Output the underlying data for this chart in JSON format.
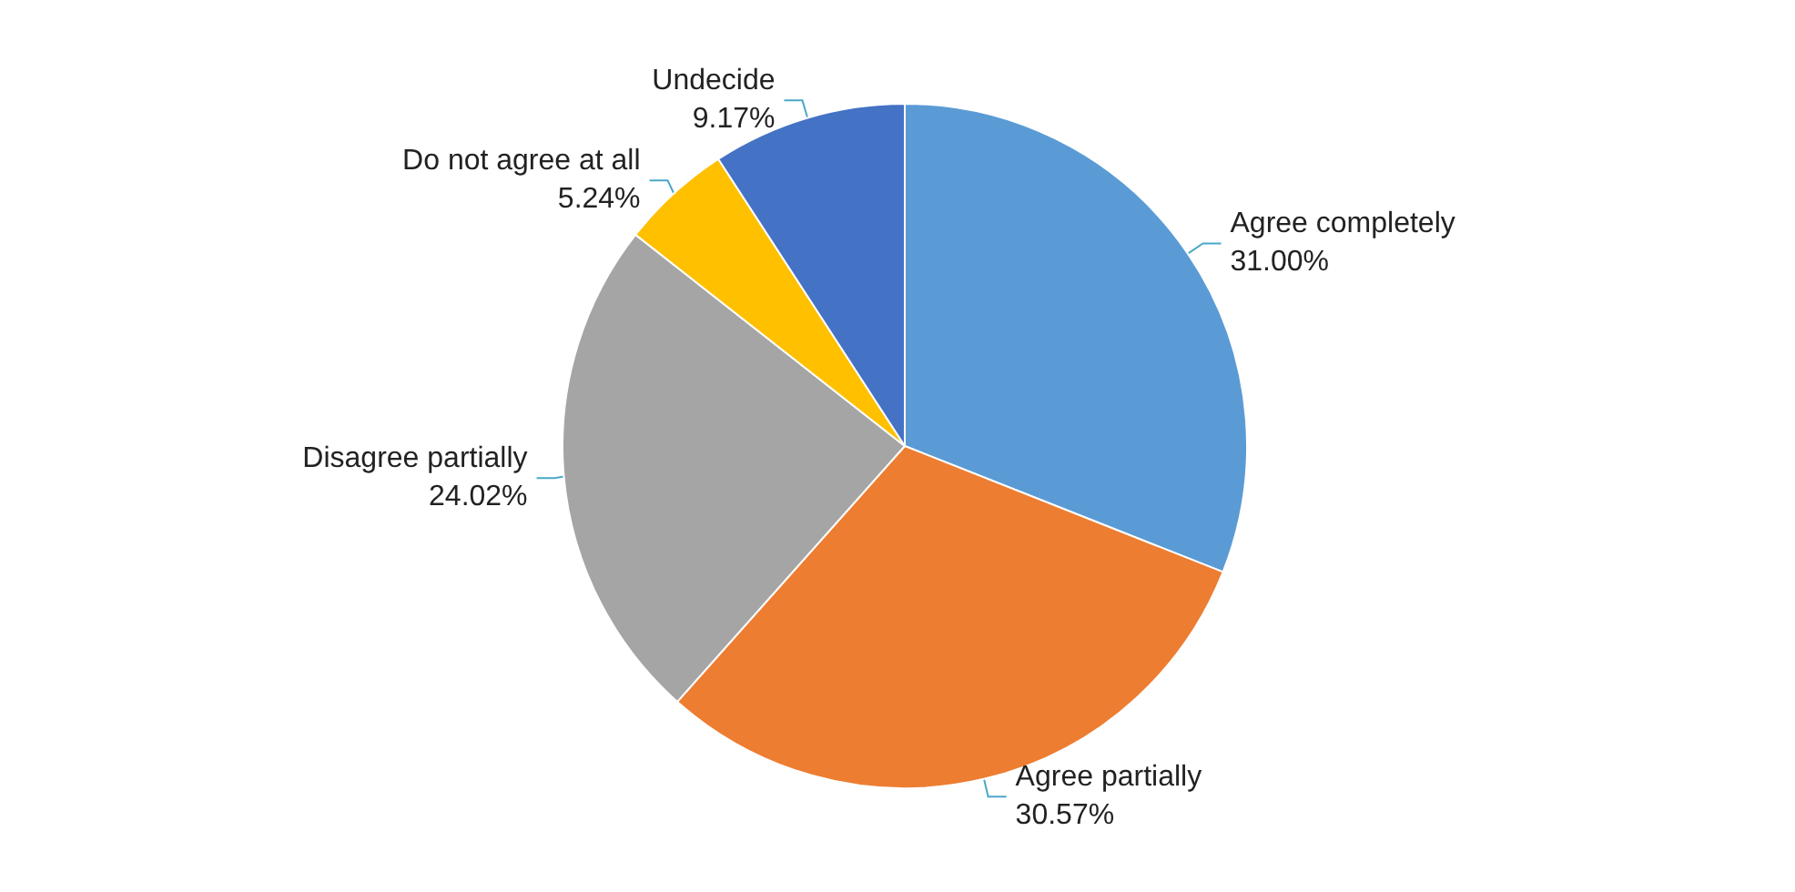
{
  "chart_data": {
    "type": "pie",
    "categories": [
      "Agree completely",
      "Agree partially",
      "Disagree partially",
      "Do not agree at all",
      "Undecide"
    ],
    "values": [
      31.0,
      30.57,
      24.02,
      5.24,
      9.17
    ],
    "value_labels": [
      "31.00%",
      "30.57%",
      "24.02%",
      "5.24%",
      "9.17%"
    ],
    "colors": [
      "#5b9bd5",
      "#ed7d31",
      "#a5a5a5",
      "#ffc000",
      "#4472c4"
    ],
    "legend": false
  }
}
